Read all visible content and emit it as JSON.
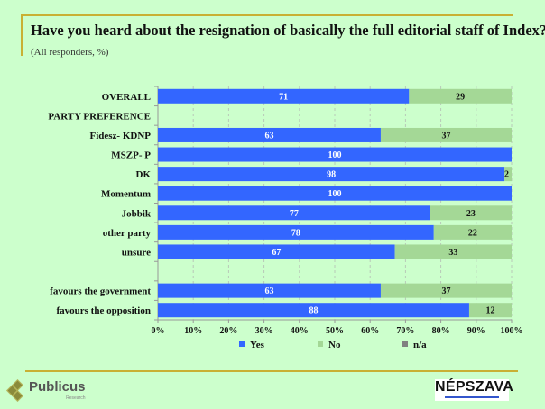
{
  "header": {
    "title": "Have you heard about the resignation of  basically the full editorial staff  of  Index?",
    "subtitle": "(All responders, %)"
  },
  "colors": {
    "background": "#ccffcc",
    "yes": "#3366ff",
    "no": "#a4d896",
    "na": "#808080",
    "frame": "#c9b034"
  },
  "chart_data": {
    "type": "bar",
    "orientation": "horizontal",
    "stacked": true,
    "title": "Have you heard about the resignation of  basically the full editorial staff  of  Index?",
    "subtitle": "(All responders, %)",
    "xlabel": "",
    "ylabel": "",
    "xlim": [
      0,
      100
    ],
    "x_ticks": [
      "0%",
      "10%",
      "20%",
      "30%",
      "40%",
      "50%",
      "60%",
      "70%",
      "80%",
      "90%",
      "100%"
    ],
    "grid": "vertical dashed",
    "legend_position": "bottom",
    "categories": [
      "OVERALL",
      "PARTY PREFERENCE",
      "Fidesz- KDNP",
      "MSZP- P",
      "DK",
      "Momentum",
      "Jobbik",
      "other party",
      "unsure",
      "",
      "favours the government",
      "favours the opposition"
    ],
    "series": [
      {
        "name": "Yes",
        "values": [
          71,
          null,
          63,
          100,
          98,
          100,
          77,
          78,
          67,
          null,
          63,
          88
        ]
      },
      {
        "name": "No",
        "values": [
          29,
          null,
          37,
          0,
          2,
          0,
          23,
          22,
          33,
          null,
          37,
          12
        ]
      },
      {
        "name": "n/a",
        "values": [
          0,
          null,
          0,
          0,
          0,
          0,
          0,
          0,
          0,
          null,
          0,
          0
        ]
      }
    ]
  },
  "footer": {
    "left_logo": "Publicus",
    "left_logo_sub": "Research",
    "right_logo": "NÉPSZAVA"
  }
}
